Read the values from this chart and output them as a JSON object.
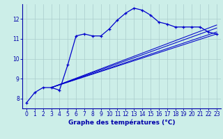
{
  "xlabel": "Graphe des températures (°C)",
  "bg_color": "#cceee8",
  "line_color": "#0000cc",
  "grid_color": "#aacccc",
  "axis_color": "#0000aa",
  "xlim": [
    -0.5,
    23.5
  ],
  "ylim": [
    7.5,
    12.75
  ],
  "yticks": [
    8,
    9,
    10,
    11,
    12
  ],
  "xticks": [
    0,
    1,
    2,
    3,
    4,
    5,
    6,
    7,
    8,
    9,
    10,
    11,
    12,
    13,
    14,
    15,
    16,
    17,
    18,
    19,
    20,
    21,
    22,
    23
  ],
  "main_x": [
    0,
    1,
    2,
    3,
    4,
    5,
    6,
    7,
    8,
    9,
    10,
    11,
    12,
    13,
    14,
    15,
    16,
    17,
    18,
    19,
    20,
    21,
    22,
    23
  ],
  "main_y": [
    7.78,
    8.3,
    8.55,
    8.55,
    8.42,
    9.7,
    11.15,
    11.25,
    11.15,
    11.15,
    11.5,
    11.95,
    12.3,
    12.55,
    12.45,
    12.2,
    11.85,
    11.75,
    11.6,
    11.6,
    11.6,
    11.6,
    11.35,
    11.25
  ],
  "reg_lines": [
    {
      "x": [
        3.0,
        23
      ],
      "y": [
        8.55,
        11.25
      ]
    },
    {
      "x": [
        3.0,
        23
      ],
      "y": [
        8.55,
        11.35
      ]
    },
    {
      "x": [
        3.0,
        23
      ],
      "y": [
        8.55,
        11.55
      ]
    },
    {
      "x": [
        3.0,
        23
      ],
      "y": [
        8.55,
        11.7
      ]
    }
  ]
}
